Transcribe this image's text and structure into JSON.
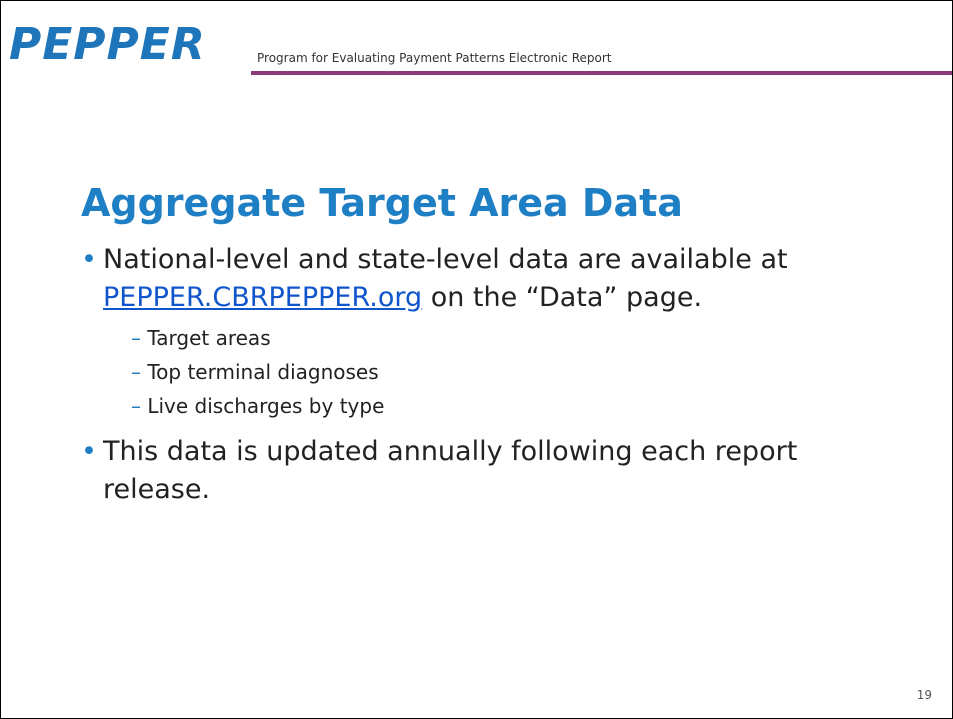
{
  "header": {
    "logo": "PEPPER",
    "tagline": "Program for Evaluating Payment Patterns Electronic Report"
  },
  "title": "Aggregate Target Area Data",
  "bullets": [
    {
      "text_before": "National-level and state-level data are available at",
      "link": "PEPPER.CBRPEPPER.org",
      "text_after": "on the “Data” page.",
      "subitems": [
        "Target areas",
        "Top terminal diagnoses",
        "Live discharges by type"
      ]
    },
    {
      "text": "This data is updated annually following each report release."
    }
  ],
  "page_number": "19"
}
